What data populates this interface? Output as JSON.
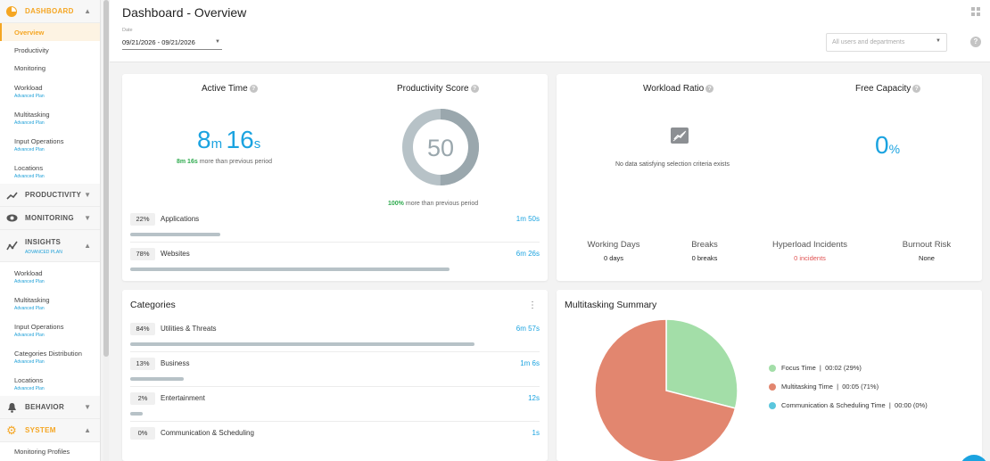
{
  "sidebar": {
    "dashboard": {
      "label": "DASHBOARD",
      "items": [
        {
          "label": "Overview",
          "sub": ""
        },
        {
          "label": "Productivity",
          "sub": ""
        },
        {
          "label": "Monitoring",
          "sub": ""
        },
        {
          "label": "Workload",
          "sub": "Advanced Plan"
        },
        {
          "label": "Multitasking",
          "sub": "Advanced Plan"
        },
        {
          "label": "Input Operations",
          "sub": "Advanced Plan"
        },
        {
          "label": "Locations",
          "sub": "Advanced Plan"
        }
      ]
    },
    "productivity": {
      "label": "PRODUCTIVITY"
    },
    "monitoring": {
      "label": "MONITORING"
    },
    "insights": {
      "label": "INSIGHTS",
      "sub": "ADVANCED PLAN",
      "items": [
        {
          "label": "Workload",
          "sub": "Advanced Plan"
        },
        {
          "label": "Multitasking",
          "sub": "Advanced Plan"
        },
        {
          "label": "Input Operations",
          "sub": "Advanced Plan"
        },
        {
          "label": "Categories Distribution",
          "sub": "Advanced Plan"
        },
        {
          "label": "Locations",
          "sub": "Advanced Plan"
        }
      ]
    },
    "behavior": {
      "label": "BEHAVIOR"
    },
    "system": {
      "label": "SYSTEM",
      "items": [
        {
          "label": "Monitoring Profiles"
        }
      ]
    }
  },
  "header": {
    "title": "Dashboard - Overview",
    "date_label": "Date",
    "date_value": "09/21/2026 - 09/21/2026",
    "users_placeholder": "All users and departments"
  },
  "active_time": {
    "title": "Active Time",
    "minutes": "8",
    "minutes_unit": "m",
    "seconds": "16",
    "seconds_unit": "s",
    "compare_value": "8m 16s",
    "compare_text": "more than previous period"
  },
  "productivity_score": {
    "title": "Productivity Score",
    "value": "50",
    "score": 50,
    "compare_value": "100%",
    "compare_text": "more than previous period"
  },
  "usage": [
    {
      "pct": "22%",
      "name": "Applications",
      "time": "1m 50s",
      "fraction": 0.22
    },
    {
      "pct": "78%",
      "name": "Websites",
      "time": "6m 26s",
      "fraction": 0.78
    }
  ],
  "workload_ratio": {
    "title": "Workload Ratio",
    "no_data": "No data satisfying selection criteria exists"
  },
  "free_capacity": {
    "title": "Free Capacity",
    "value": "0",
    "unit": "%"
  },
  "stats": [
    {
      "label": "Working Days",
      "value": "0 days"
    },
    {
      "label": "Breaks",
      "value": "0 breaks"
    },
    {
      "label": "Hyperload Incidents",
      "value": "0 incidents"
    },
    {
      "label": "Burnout Risk",
      "value": "None"
    }
  ],
  "categories": {
    "title": "Categories",
    "rows": [
      {
        "pct": "84%",
        "name": "Utilities & Threats",
        "time": "6m 57s",
        "fraction": 0.84
      },
      {
        "pct": "13%",
        "name": "Business",
        "time": "1m 6s",
        "fraction": 0.13
      },
      {
        "pct": "2%",
        "name": "Entertainment",
        "time": "12s",
        "fraction": 0.02
      },
      {
        "pct": "0%",
        "name": "Communication & Scheduling",
        "time": "1s",
        "fraction": 0.0
      }
    ]
  },
  "multitasking": {
    "title": "Multitasking Summary",
    "legend": [
      {
        "label": "Focus Time",
        "value": "00:02 (29%)",
        "color": "#a3dea8"
      },
      {
        "label": "Multitasking Time",
        "value": "00:05 (71%)",
        "color": "#e2866f"
      },
      {
        "label": "Communication & Scheduling Time",
        "value": "00:00 (0%)",
        "color": "#5bc6dd"
      }
    ]
  },
  "chart_data": {
    "type": "pie",
    "title": "Multitasking Summary",
    "categories": [
      "Focus Time",
      "Multitasking Time",
      "Communication & Scheduling Time"
    ],
    "values": [
      29,
      71,
      0
    ],
    "colors": [
      "#a3dea8",
      "#e2866f",
      "#5bc6dd"
    ]
  }
}
